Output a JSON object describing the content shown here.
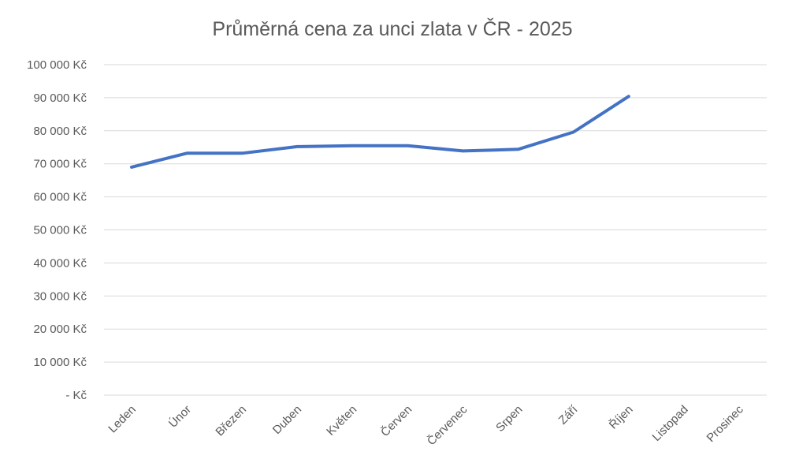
{
  "chart_data": {
    "type": "line",
    "title": "Průměrná cena za unci zlata v ČR - 2025",
    "xlabel": "",
    "ylabel": "",
    "categories": [
      "Leden",
      "Únor",
      "Březen",
      "Duben",
      "Květen",
      "Červen",
      "Červenec",
      "Srpen",
      "Září",
      "Říjen",
      "Listopad",
      "Prosinec"
    ],
    "series": [
      {
        "values": [
          69000,
          73200,
          73200,
          75200,
          75500,
          75500,
          73900,
          74400,
          79600,
          90400,
          null,
          null
        ],
        "color": "#4472c4"
      }
    ],
    "ylim": [
      0,
      100000
    ],
    "yticks": [
      0,
      10000,
      20000,
      30000,
      40000,
      50000,
      60000,
      70000,
      80000,
      90000,
      100000
    ],
    "ytick_labels": [
      "-  Kč",
      "10 000 Kč",
      "20 000 Kč",
      "30 000 Kč",
      "40 000 Kč",
      "50 000 Kč",
      "60 000 Kč",
      "70 000 Kč",
      "80 000 Kč",
      "90 000 Kč",
      "100 000 Kč"
    ],
    "grid": true,
    "legend": "none"
  }
}
